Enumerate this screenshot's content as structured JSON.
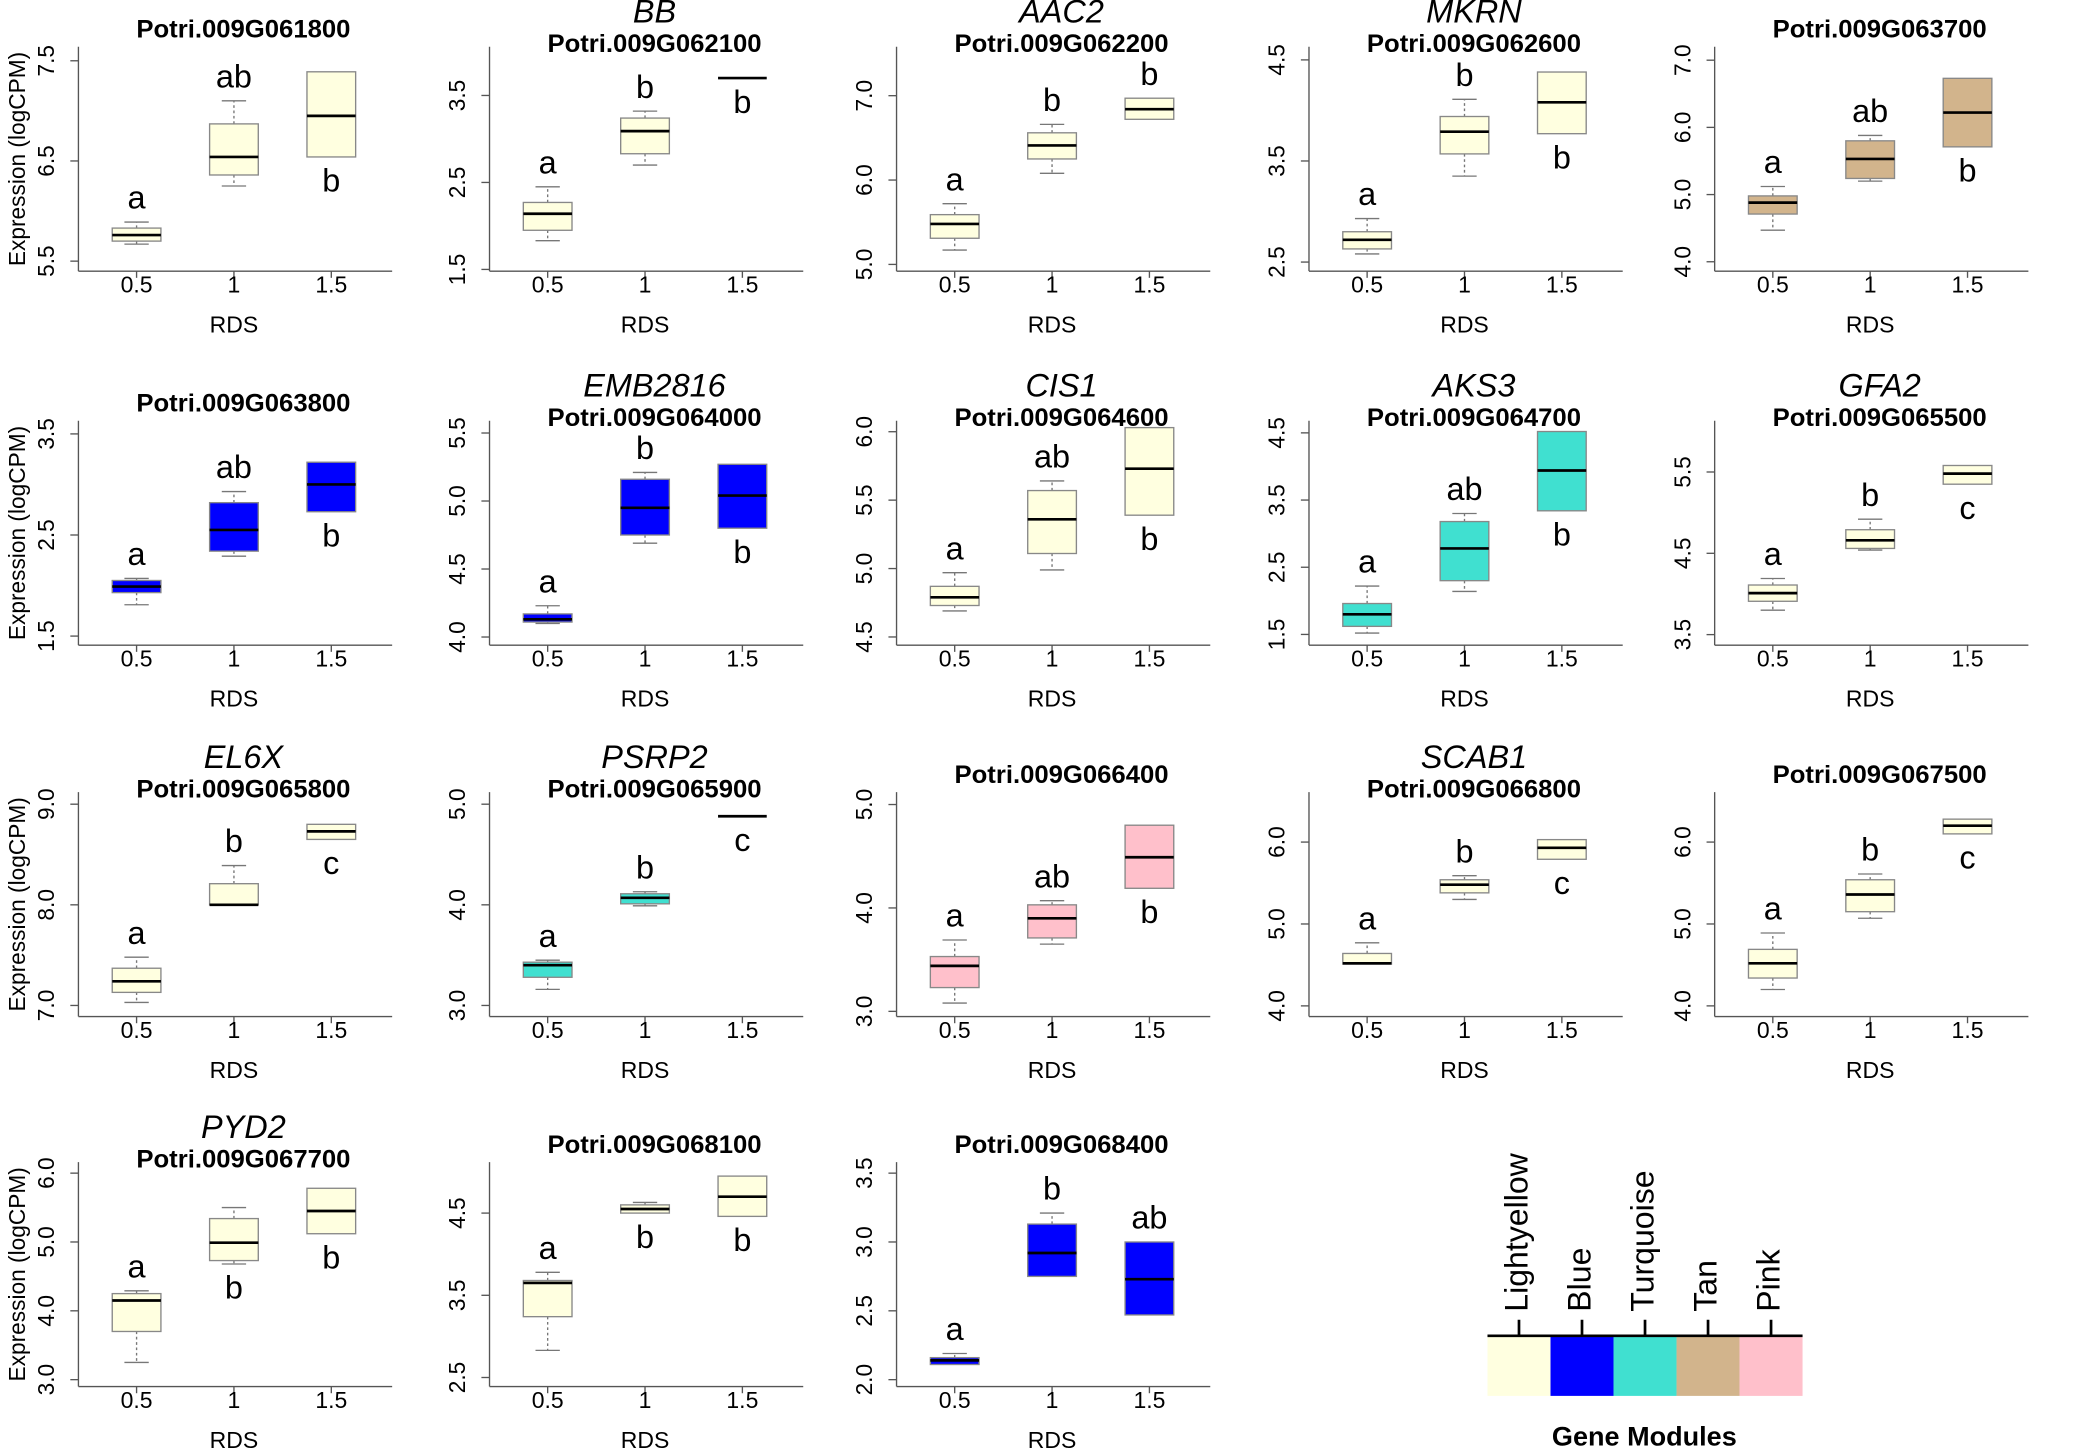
{
  "chart_data": [
    {
      "type": "box",
      "title": "Potri.009G061800",
      "ylabel": "Expression (logCPM)",
      "xlabel": "RDS",
      "categories": [
        "0.5",
        "1",
        "1.5"
      ],
      "color": "#FFFFE0",
      "ylim": [
        5.4,
        7.64
      ],
      "yticks": [
        5.5,
        6.5,
        7.5
      ],
      "boxes": [
        {
          "min": 5.67,
          "q1": 5.7,
          "median": 5.76,
          "q3": 5.83,
          "max": 5.89
        },
        {
          "min": 6.25,
          "q1": 6.36,
          "median": 6.54,
          "q3": 6.87,
          "max": 7.1
        },
        {
          "q1": 6.54,
          "median": 6.95,
          "q3": 7.39
        }
      ],
      "letters": [
        "a",
        "ab",
        "b"
      ]
    },
    {
      "type": "box",
      "gene": "BB",
      "title": "Potri.009G062100",
      "xlabel": "RDS",
      "categories": [
        "0.5",
        "1",
        "1.5"
      ],
      "color": "#FFFFE0",
      "ylim": [
        1.48,
        4.06
      ],
      "yticks": [
        1.5,
        2.5,
        3.5
      ],
      "boxes": [
        {
          "min": 1.83,
          "q1": 1.95,
          "median": 2.14,
          "q3": 2.27,
          "max": 2.45
        },
        {
          "min": 2.7,
          "q1": 2.83,
          "median": 3.09,
          "q3": 3.24,
          "max": 3.32
        },
        {
          "median": 3.7
        }
      ],
      "letters": [
        "a",
        "b",
        "b"
      ]
    },
    {
      "type": "box",
      "gene": "AAC2",
      "title": "Potri.009G062200",
      "xlabel": "RDS",
      "categories": [
        "0.5",
        "1",
        "1.5"
      ],
      "color": "#FFFFE0",
      "ylim": [
        4.92,
        7.58
      ],
      "yticks": [
        {
          "value": 5,
          "label": "5.0"
        },
        {
          "value": 6,
          "label": "6.0"
        },
        {
          "value": 7,
          "label": "7.0"
        }
      ],
      "boxes": [
        {
          "min": 5.17,
          "q1": 5.31,
          "median": 5.48,
          "q3": 5.59,
          "max": 5.72
        },
        {
          "min": 6.08,
          "q1": 6.25,
          "median": 6.41,
          "q3": 6.56,
          "max": 6.66
        },
        {
          "q1": 6.72,
          "median": 6.84,
          "q3": 6.97
        }
      ],
      "letters": [
        "a",
        "b",
        "b"
      ]
    },
    {
      "type": "box",
      "gene": "MKRN",
      "title": "Potri.009G062600",
      "xlabel": "RDS",
      "categories": [
        "0.5",
        "1",
        "1.5"
      ],
      "color": "#FFFFE0",
      "ylim": [
        2.41,
        4.63
      ],
      "yticks": [
        2.5,
        3.5,
        4.5
      ],
      "boxes": [
        {
          "min": 2.58,
          "q1": 2.63,
          "median": 2.72,
          "q3": 2.8,
          "max": 2.93
        },
        {
          "min": 3.35,
          "q1": 3.57,
          "median": 3.79,
          "q3": 3.94,
          "max": 4.11
        },
        {
          "q1": 3.77,
          "median": 4.08,
          "q3": 4.38
        }
      ],
      "letters": [
        "a",
        "b",
        "b"
      ]
    },
    {
      "type": "box",
      "title": "Potri.009G063700",
      "xlabel": "RDS",
      "categories": [
        "0.5",
        "1",
        "1.5"
      ],
      "color": "#D2B48C",
      "ylim": [
        3.86,
        7.2
      ],
      "yticks": [
        {
          "value": 4,
          "label": "4.0"
        },
        {
          "value": 5,
          "label": "5.0"
        },
        {
          "value": 6,
          "label": "6.0"
        },
        {
          "value": 7,
          "label": "7.0"
        }
      ],
      "boxes": [
        {
          "min": 4.47,
          "q1": 4.71,
          "median": 4.88,
          "q3": 4.98,
          "max": 5.12
        },
        {
          "min": 5.2,
          "q1": 5.24,
          "median": 5.53,
          "q3": 5.8,
          "max": 5.88
        },
        {
          "q1": 5.71,
          "median": 6.22,
          "q3": 6.73
        }
      ],
      "letters": [
        "a",
        "ab",
        "b"
      ]
    },
    {
      "type": "box",
      "title": "Potri.009G063800",
      "ylabel": "Expression (logCPM)",
      "xlabel": "RDS",
      "categories": [
        "0.5",
        "1",
        "1.5"
      ],
      "color": "#0000FF",
      "ylim": [
        1.41,
        3.63
      ],
      "yticks": [
        1.5,
        2.5,
        3.5
      ],
      "boxes": [
        {
          "min": 1.81,
          "q1": 1.93,
          "median": 1.99,
          "q3": 2.05,
          "max": 2.07
        },
        {
          "min": 2.29,
          "q1": 2.34,
          "median": 2.55,
          "q3": 2.82,
          "max": 2.93
        },
        {
          "q1": 2.73,
          "median": 3.0,
          "q3": 3.22
        }
      ],
      "letters": [
        "a",
        "ab",
        "b"
      ]
    },
    {
      "type": "box",
      "gene": "EMB2816",
      "title": "Potri.009G064000",
      "xlabel": "RDS",
      "categories": [
        "0.5",
        "1",
        "1.5"
      ],
      "color": "#0000FF",
      "ylim": [
        3.94,
        5.59
      ],
      "yticks": [
        {
          "value": 4,
          "label": "4.0"
        },
        4.5,
        {
          "value": 5,
          "label": "5.0"
        },
        5.5
      ],
      "boxes": [
        {
          "min": 4.1,
          "q1": 4.11,
          "median": 4.13,
          "q3": 4.17,
          "max": 4.23
        },
        {
          "min": 4.69,
          "q1": 4.75,
          "median": 4.95,
          "q3": 5.16,
          "max": 5.21
        },
        {
          "q1": 4.8,
          "median": 5.04,
          "q3": 5.27
        }
      ],
      "letters": [
        "a",
        "b",
        "b"
      ]
    },
    {
      "type": "box",
      "gene": "CIS1",
      "title": "Potri.009G064600",
      "xlabel": "RDS",
      "categories": [
        "0.5",
        "1",
        "1.5"
      ],
      "color": "#FFFFE0",
      "ylim": [
        4.44,
        6.08
      ],
      "yticks": [
        4.5,
        {
          "value": 5,
          "label": "5.0"
        },
        5.5,
        {
          "value": 6,
          "label": "6.0"
        }
      ],
      "boxes": [
        {
          "min": 4.69,
          "q1": 4.73,
          "median": 4.79,
          "q3": 4.87,
          "max": 4.97
        },
        {
          "min": 4.99,
          "q1": 5.11,
          "median": 5.36,
          "q3": 5.57,
          "max": 5.64
        },
        {
          "q1": 5.39,
          "median": 5.73,
          "q3": 6.03
        }
      ],
      "letters": [
        "a",
        "ab",
        "b"
      ]
    },
    {
      "type": "box",
      "gene": "AKS3",
      "title": "Potri.009G064700",
      "xlabel": "RDS",
      "categories": [
        "0.5",
        "1",
        "1.5"
      ],
      "color": "#40E0D0",
      "ylim": [
        1.34,
        4.68
      ],
      "yticks": [
        1.5,
        2.5,
        3.5,
        4.5
      ],
      "boxes": [
        {
          "min": 1.52,
          "q1": 1.62,
          "median": 1.8,
          "q3": 1.96,
          "max": 2.22
        },
        {
          "min": 2.14,
          "q1": 2.3,
          "median": 2.78,
          "q3": 3.18,
          "max": 3.3
        },
        {
          "q1": 3.34,
          "median": 3.94,
          "q3": 4.52
        }
      ],
      "letters": [
        "a",
        "ab",
        "b"
      ]
    },
    {
      "type": "box",
      "gene": "GFA2",
      "title": "Potri.009G065500",
      "xlabel": "RDS",
      "categories": [
        "0.5",
        "1",
        "1.5"
      ],
      "color": "#FFFFE0",
      "ylim": [
        3.37,
        6.13
      ],
      "yticks": [
        3.5,
        4.5,
        5.5
      ],
      "boxes": [
        {
          "min": 3.8,
          "q1": 3.91,
          "median": 4.01,
          "q3": 4.11,
          "max": 4.19
        },
        {
          "min": 4.54,
          "q1": 4.56,
          "median": 4.66,
          "q3": 4.79,
          "max": 4.92
        },
        {
          "q1": 5.35,
          "median": 5.48,
          "q3": 5.58
        }
      ],
      "letters": [
        "a",
        "b",
        "c"
      ]
    },
    {
      "type": "box",
      "gene": "EL6X",
      "title": "Potri.009G065800",
      "ylabel": "Expression (logCPM)",
      "xlabel": "RDS",
      "categories": [
        "0.5",
        "1",
        "1.5"
      ],
      "color": "#FFFFE0",
      "ylim": [
        6.89,
        9.12
      ],
      "yticks": [
        {
          "value": 7,
          "label": "7.0"
        },
        {
          "value": 8,
          "label": "8.0"
        },
        {
          "value": 9,
          "label": "9.0"
        }
      ],
      "boxes": [
        {
          "min": 7.03,
          "q1": 7.13,
          "median": 7.24,
          "q3": 7.37,
          "max": 7.48
        },
        {
          "q1": 8.0,
          "median": 8.0,
          "q3": 8.21,
          "max": 8.39
        },
        {
          "q1": 8.65,
          "median": 8.73,
          "q3": 8.8
        }
      ],
      "letters": [
        "a",
        "b",
        "c"
      ]
    },
    {
      "type": "box",
      "gene": "PSRP2",
      "title": "Potri.009G065900",
      "xlabel": "RDS",
      "categories": [
        "0.5",
        "1",
        "1.5"
      ],
      "color": "#40E0D0",
      "ylim": [
        2.89,
        5.12
      ],
      "yticks": [
        {
          "value": 3,
          "label": "3.0"
        },
        {
          "value": 4,
          "label": "4.0"
        },
        {
          "value": 5,
          "label": "5.0"
        }
      ],
      "boxes": [
        {
          "min": 3.16,
          "q1": 3.28,
          "median": 3.4,
          "q3": 3.43,
          "max": 3.45
        },
        {
          "min": 3.99,
          "q1": 4.01,
          "median": 4.07,
          "q3": 4.11,
          "max": 4.13
        },
        {
          "median": 4.88
        }
      ],
      "letters": [
        "a",
        "b",
        "c"
      ]
    },
    {
      "type": "box",
      "title": "Potri.009G066400",
      "xlabel": "RDS",
      "categories": [
        "0.5",
        "1",
        "1.5"
      ],
      "color": "#FFC0CB",
      "ylim": [
        2.95,
        5.12
      ],
      "yticks": [
        {
          "value": 3,
          "label": "3.0"
        },
        {
          "value": 4,
          "label": "4.0"
        },
        {
          "value": 5,
          "label": "5.0"
        }
      ],
      "boxes": [
        {
          "min": 3.08,
          "q1": 3.23,
          "median": 3.44,
          "q3": 3.53,
          "max": 3.69
        },
        {
          "min": 3.65,
          "q1": 3.71,
          "median": 3.9,
          "q3": 4.03,
          "max": 4.07
        },
        {
          "q1": 4.19,
          "median": 4.49,
          "q3": 4.8
        }
      ],
      "letters": [
        "a",
        "ab",
        "b"
      ]
    },
    {
      "type": "box",
      "gene": "SCAB1",
      "title": "Potri.009G066800",
      "xlabel": "RDS",
      "categories": [
        "0.5",
        "1",
        "1.5"
      ],
      "color": "#FFFFE0",
      "ylim": [
        3.87,
        6.61
      ],
      "yticks": [
        {
          "value": 4,
          "label": "4.0"
        },
        {
          "value": 5,
          "label": "5.0"
        },
        {
          "value": 6,
          "label": "6.0"
        }
      ],
      "boxes": [
        {
          "q1": 4.51,
          "median": 4.52,
          "q3": 4.64,
          "max": 4.77
        },
        {
          "min": 5.3,
          "q1": 5.38,
          "median": 5.48,
          "q3": 5.54,
          "max": 5.59
        },
        {
          "q1": 5.79,
          "median": 5.93,
          "q3": 6.03
        }
      ],
      "letters": [
        "a",
        "b",
        "c"
      ]
    },
    {
      "type": "box",
      "title": "Potri.009G067500",
      "xlabel": "RDS",
      "categories": [
        "0.5",
        "1",
        "1.5"
      ],
      "color": "#FFFFE0",
      "ylim": [
        3.87,
        6.61
      ],
      "yticks": [
        {
          "value": 4,
          "label": "4.0"
        },
        {
          "value": 5,
          "label": "5.0"
        },
        {
          "value": 6,
          "label": "6.0"
        }
      ],
      "boxes": [
        {
          "min": 4.2,
          "q1": 4.34,
          "median": 4.52,
          "q3": 4.69,
          "max": 4.89
        },
        {
          "min": 5.07,
          "q1": 5.15,
          "median": 5.36,
          "q3": 5.54,
          "max": 5.61
        },
        {
          "q1": 6.1,
          "median": 6.2,
          "q3": 6.28
        }
      ],
      "letters": [
        "a",
        "b",
        "c"
      ]
    },
    {
      "type": "box",
      "gene": "PYD2",
      "title": "Potri.009G067700",
      "ylabel": "Expression (logCPM)",
      "xlabel": "RDS",
      "categories": [
        "0.5",
        "1",
        "1.5"
      ],
      "color": "#FFFFE0",
      "ylim": [
        2.9,
        6.16
      ],
      "yticks": [
        {
          "value": 3,
          "label": "3.0"
        },
        {
          "value": 4,
          "label": "4.0"
        },
        {
          "value": 5,
          "label": "5.0"
        },
        {
          "value": 6,
          "label": "6.0"
        }
      ],
      "boxes": [
        {
          "min": 3.25,
          "q1": 3.7,
          "median": 4.15,
          "q3": 4.25,
          "max": 4.29
        },
        {
          "min": 4.68,
          "q1": 4.73,
          "median": 4.99,
          "q3": 5.34,
          "max": 5.5
        },
        {
          "q1": 5.12,
          "median": 5.45,
          "q3": 5.78
        }
      ],
      "letters": [
        "a",
        "b",
        "b"
      ]
    },
    {
      "type": "box",
      "title": "Potri.009G068100",
      "xlabel": "RDS",
      "categories": [
        "0.5",
        "1",
        "1.5"
      ],
      "color": "#FFFFE0",
      "ylim": [
        2.39,
        5.12
      ],
      "yticks": [
        2.5,
        3.5,
        4.5
      ],
      "boxes": [
        {
          "min": 2.83,
          "q1": 3.24,
          "median": 3.65,
          "q3": 3.68,
          "max": 3.78
        },
        {
          "q1": 4.5,
          "median": 4.55,
          "q3": 4.6,
          "max": 4.63
        },
        {
          "q1": 4.46,
          "median": 4.7,
          "q3": 4.95
        }
      ],
      "letters": [
        "a",
        "b",
        "b"
      ]
    },
    {
      "type": "box",
      "title": "Potri.009G068400",
      "xlabel": "RDS",
      "categories": [
        "0.5",
        "1",
        "1.5"
      ],
      "color": "#0000FF",
      "ylim": [
        1.95,
        3.58
      ],
      "yticks": [
        {
          "value": 2,
          "label": "2.0"
        },
        2.5,
        {
          "value": 3,
          "label": "3.0"
        },
        3.5
      ],
      "boxes": [
        {
          "q1": 2.11,
          "median": 2.14,
          "q3": 2.16,
          "max": 2.19
        },
        {
          "q1": 2.75,
          "median": 2.92,
          "q3": 3.13,
          "max": 3.21
        },
        {
          "q1": 2.47,
          "median": 2.73,
          "q3": 3.0
        }
      ],
      "letters": [
        "a",
        "b",
        "ab"
      ]
    }
  ],
  "legend": {
    "title": "Gene Modules",
    "items": [
      {
        "name": "Lightyellow",
        "color": "#FFFFE0"
      },
      {
        "name": "Blue",
        "color": "#0000FF"
      },
      {
        "name": "Turquoise",
        "color": "#40E0D0"
      },
      {
        "name": "Tan",
        "color": "#D2B48C"
      },
      {
        "name": "Pink",
        "color": "#FFC0CB"
      }
    ]
  }
}
